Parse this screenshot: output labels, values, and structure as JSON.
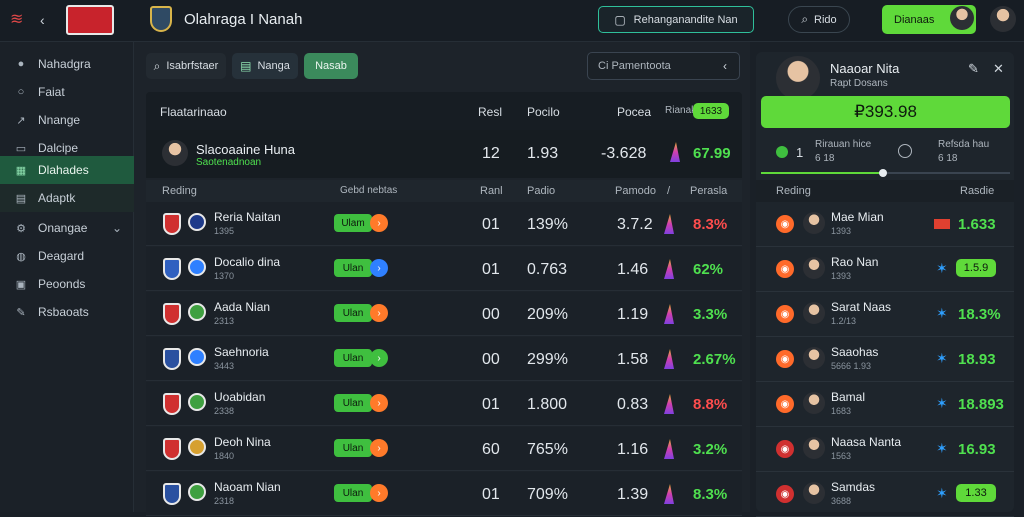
{
  "app": {
    "title": "Olahraga I Nanah"
  },
  "header": {
    "search_label": "Rehanganandite Nan",
    "search2_label": "Rido",
    "cta_label": "Dianaas"
  },
  "sidebar": {
    "items": [
      {
        "label": "Nahadgra",
        "icon": "soccer-ball-icon"
      },
      {
        "label": "Faiat",
        "icon": "search-icon"
      },
      {
        "label": "Nnange",
        "icon": "chart-icon"
      },
      {
        "label": "Dalcipe",
        "icon": "message-icon"
      },
      {
        "label": "Dlahades",
        "icon": "grid-icon"
      },
      {
        "label": "Adaptk",
        "icon": "document-icon"
      },
      {
        "label": "Onangae",
        "icon": "settings-icon"
      },
      {
        "label": "Deagard",
        "icon": "globe-icon"
      },
      {
        "label": "Peoonds",
        "icon": "calendar-icon"
      },
      {
        "label": "Rsbaoats",
        "icon": "tag-icon"
      }
    ]
  },
  "filters": {
    "search_tab": "Isabrfstaer",
    "tab_mid": "Nanga",
    "tab_active": "Nasab",
    "input_placeholder": "Ci Pamentoota"
  },
  "table": {
    "top_header": {
      "label": "Flaatarinaao",
      "col1": "Resl",
      "col2": "Pocilo",
      "col3": "Pocea",
      "badge": "Rianak",
      "badge_value": "1633"
    },
    "featured": {
      "name": "Slacoaaine Huna",
      "sub": "Saotenadnoan",
      "col1": "12",
      "col2": "1.93",
      "col3": "-3.628",
      "pct": "67.99"
    },
    "sub_header": {
      "label": "Reding",
      "c0": "Gebd nebtas",
      "c1": "Ranl",
      "c2": "Padio",
      "c3": "Pamodo",
      "c4": "/",
      "c5": "Perasla"
    },
    "rows": [
      {
        "name": "Reria Naitan",
        "sub": "1395",
        "status": "Ulam",
        "col1": "01",
        "col2": "139%",
        "col3": "3.7.2",
        "pct": "8.3%",
        "pct_color": "#ff4d4d",
        "dot_color": "#ff7a2a"
      },
      {
        "name": "Docalio dina",
        "sub": "1370",
        "status": "Ulan",
        "col1": "01",
        "col2": "0.763",
        "col3": "1.46",
        "pct": "62%",
        "pct_color": "#4fe04f",
        "dot_color": "#2f80ff"
      },
      {
        "name": "Aada Nian",
        "sub": "2313",
        "status": "Ulan",
        "col1": "00",
        "col2": "209%",
        "col3": "1.19",
        "pct": "3.3%",
        "pct_color": "#4fe04f",
        "dot_color": "#ff7a2a"
      },
      {
        "name": "Saehnoria",
        "sub": "3443",
        "status": "Ulan",
        "col1": "00",
        "col2": "299%",
        "col3": "1.58",
        "pct": "2.67%",
        "pct_color": "#4fe04f",
        "dot_color": "#3fbf3f"
      },
      {
        "name": "Uoabidan",
        "sub": "2338",
        "status": "Ulan",
        "col1": "01",
        "col2": "1.800",
        "col3": "0.83",
        "pct": "8.8%",
        "pct_color": "#ff4d4d",
        "dot_color": "#ff7a2a"
      },
      {
        "name": "Deoh Nina",
        "sub": "1840",
        "status": "Ulan",
        "col1": "60",
        "col2": "765%",
        "col3": "1.16",
        "pct": "3.2%",
        "pct_color": "#4fe04f",
        "dot_color": "#ff7a2a"
      },
      {
        "name": "Naoam Nian",
        "sub": "2318",
        "status": "Ulan",
        "col1": "01",
        "col2": "709%",
        "col3": "1.39",
        "pct": "8.3%",
        "pct_color": "#4fe04f",
        "dot_color": "#ff7a2a"
      }
    ]
  },
  "panel": {
    "user_name": "Naaoar Nita",
    "user_sub": "Rapt Dosans",
    "balance": "₽393.98",
    "stat1_value": "1",
    "stat1_label": "Rirauan hice",
    "stat1_sub": "6 18",
    "stat2_label": "Refsda hau",
    "stat2_sub": "6 18",
    "list_header_left": "Reding",
    "list_header_right": "Rasdie",
    "items": [
      {
        "name": "Mae Mian",
        "sub": "1393",
        "value": "1.633",
        "boxed": false,
        "flag": true
      },
      {
        "name": "Rao Nan",
        "sub": "1393",
        "value": "1.5.9",
        "boxed": true,
        "flag": false
      },
      {
        "name": "Sarat Naas",
        "sub": "1.2/13",
        "value": "18.3%",
        "boxed": false,
        "flag": false
      },
      {
        "name": "Saaohas",
        "sub": "5666 1.93",
        "value": "18.93",
        "boxed": false,
        "flag": false
      },
      {
        "name": "Bamal",
        "sub": "1683",
        "value": "18.893",
        "boxed": false,
        "flag": false
      },
      {
        "name": "Naasa Nanta",
        "sub": "1563",
        "value": "16.93",
        "boxed": false,
        "flag": false
      },
      {
        "name": "Samdas",
        "sub": "3688",
        "value": "1.33",
        "boxed": true,
        "flag": false
      }
    ]
  },
  "colors": {
    "accent": "#5fd93a",
    "active_nav": "#1f5a3e",
    "loss": "#ff4d4d",
    "gain": "#4fe04f"
  }
}
